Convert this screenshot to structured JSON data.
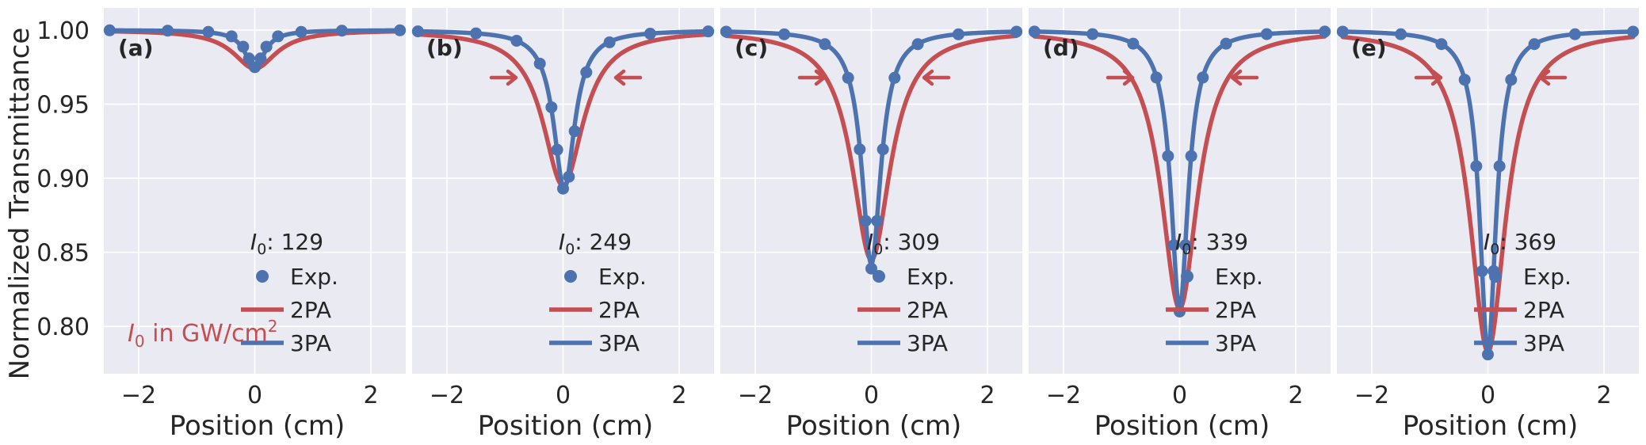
{
  "chart_data": {
    "type": "line",
    "ylabel": "Normalized Transmittance",
    "xlabel": "Position (cm)",
    "xlim": [
      -2.6,
      2.6
    ],
    "ylim": [
      0.768,
      1.015
    ],
    "xticks": [
      -2,
      0,
      2
    ],
    "xtick_labels": [
      "−2",
      "0",
      "2"
    ],
    "yticks": [
      0.8,
      0.85,
      0.9,
      0.95,
      1.0
    ],
    "ytick_labels": [
      "0.80",
      "0.85",
      "0.90",
      "0.95",
      "1.00"
    ],
    "grid": true,
    "colors": {
      "exp": "#4c72b0",
      "pa2": "#c44e52",
      "pa3": "#4c72b0",
      "background": "#eaeaf2",
      "grid": "#ffffff"
    },
    "legend_labels": [
      "Exp.",
      "2PA",
      "3PA"
    ],
    "intensity_note": {
      "prefix": "I",
      "sub": "0",
      "middle": " in GW/cm",
      "sup": "2"
    },
    "panels": [
      {
        "label": "(a)",
        "legend_title": {
          "prefix": "I",
          "sub": "0",
          "value": ": 129"
        },
        "arrows": false,
        "series": [
          {
            "name": "Exp.",
            "style": "markers",
            "minimum": 0.975,
            "center": 0.0,
            "width": 0.18,
            "x": [
              -2.5,
              -1.5,
              -0.8,
              -0.4,
              -0.2,
              -0.1,
              0.0,
              0.1,
              0.2,
              0.4,
              0.8,
              1.5,
              2.5
            ]
          },
          {
            "name": "2PA",
            "style": "line",
            "minimum": 0.974,
            "center": 0.0,
            "width": 0.45
          },
          {
            "name": "3PA",
            "style": "line",
            "minimum": 0.974,
            "center": 0.0,
            "width": 0.2
          }
        ]
      },
      {
        "label": "(b)",
        "legend_title": {
          "prefix": "I",
          "sub": "0",
          "value": ": 249"
        },
        "arrows": true,
        "series": [
          {
            "name": "Exp.",
            "style": "markers",
            "minimum": 0.891,
            "center": 0.03,
            "width": 0.22,
            "x": [
              -2.5,
              -1.5,
              -0.8,
              -0.4,
              -0.2,
              -0.1,
              0.0,
              0.1,
              0.2,
              0.4,
              0.8,
              1.5,
              2.5
            ]
          },
          {
            "name": "2PA",
            "style": "line",
            "minimum": 0.895,
            "center": 0.0,
            "width": 0.42
          },
          {
            "name": "3PA",
            "style": "line",
            "minimum": 0.893,
            "center": 0.02,
            "width": 0.22
          }
        ]
      },
      {
        "label": "(c)",
        "legend_title": {
          "prefix": "I",
          "sub": "0",
          "value": ": 309"
        },
        "arrows": true,
        "series": [
          {
            "name": "Exp.",
            "style": "markers",
            "minimum": 0.839,
            "center": 0.0,
            "width": 0.2,
            "x": [
              -2.5,
              -1.5,
              -0.8,
              -0.4,
              -0.2,
              -0.1,
              0.0,
              0.1,
              0.2,
              0.4,
              0.8,
              1.5,
              2.5
            ]
          },
          {
            "name": "2PA",
            "style": "line",
            "minimum": 0.845,
            "center": 0.0,
            "width": 0.4
          },
          {
            "name": "3PA",
            "style": "line",
            "minimum": 0.842,
            "center": 0.0,
            "width": 0.2
          }
        ]
      },
      {
        "label": "(d)",
        "legend_title": {
          "prefix": "I",
          "sub": "0",
          "value": ": 339"
        },
        "arrows": true,
        "series": [
          {
            "name": "Exp.",
            "style": "markers",
            "minimum": 0.81,
            "center": 0.0,
            "width": 0.18,
            "x": [
              -2.5,
              -1.5,
              -0.8,
              -0.4,
              -0.2,
              -0.1,
              0.0,
              0.1,
              0.2,
              0.4,
              0.8,
              1.5,
              2.5
            ]
          },
          {
            "name": "2PA",
            "style": "line",
            "minimum": 0.812,
            "center": 0.0,
            "width": 0.38
          },
          {
            "name": "3PA",
            "style": "line",
            "minimum": 0.812,
            "center": 0.0,
            "width": 0.18
          }
        ]
      },
      {
        "label": "(e)",
        "legend_title": {
          "prefix": "I",
          "sub": "0",
          "value": ": 369"
        },
        "arrows": true,
        "series": [
          {
            "name": "Exp.",
            "style": "markers",
            "minimum": 0.781,
            "center": 0.0,
            "width": 0.17,
            "x": [
              -2.5,
              -1.5,
              -0.8,
              -0.4,
              -0.2,
              -0.1,
              0.0,
              0.1,
              0.2,
              0.4,
              0.8,
              1.5,
              2.5
            ]
          },
          {
            "name": "2PA",
            "style": "line",
            "minimum": 0.783,
            "center": 0.0,
            "width": 0.37
          },
          {
            "name": "3PA",
            "style": "line",
            "minimum": 0.783,
            "center": 0.0,
            "width": 0.17
          }
        ]
      }
    ]
  }
}
